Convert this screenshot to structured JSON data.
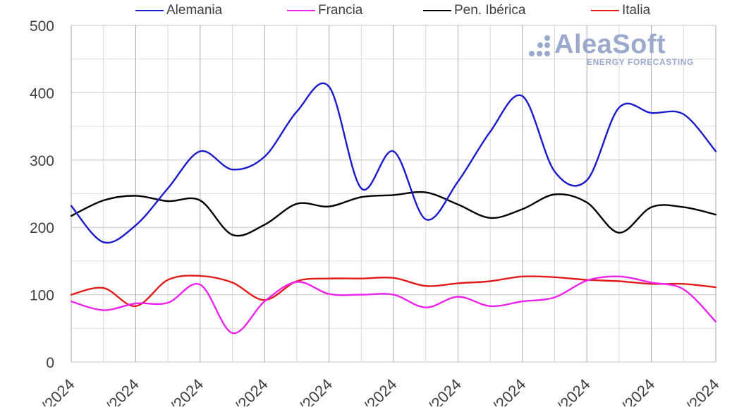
{
  "chart_data": {
    "type": "line",
    "title": "",
    "xlabel": "",
    "ylabel": "",
    "ylim": [
      0,
      500
    ],
    "yticks": [
      0,
      100,
      200,
      300,
      400,
      500
    ],
    "grid": true,
    "legend_position": "top",
    "x_tick_labels": [
      "/2024",
      "/2024",
      "/2024",
      "/2024",
      "/2024",
      "/2024",
      "/2024",
      "/2024",
      "/2024",
      "/2024",
      "/2024"
    ],
    "series": [
      {
        "name": "Alemania",
        "color": "#1a1acc",
        "values": [
          232,
          178,
          203,
          258,
          313,
          286,
          305,
          372,
          409,
          258,
          313,
          212,
          268,
          342,
          395,
          283,
          270,
          378,
          370,
          368,
          313
        ]
      },
      {
        "name": "Francia",
        "color": "#ee22ee",
        "values": [
          90,
          77,
          87,
          88,
          115,
          43,
          90,
          119,
          101,
          100,
          100,
          81,
          97,
          83,
          90,
          96,
          121,
          127,
          118,
          108,
          60
        ]
      },
      {
        "name": "Pen. Ibérica",
        "color": "#000000",
        "values": [
          217,
          240,
          247,
          239,
          240,
          189,
          204,
          235,
          231,
          245,
          248,
          252,
          234,
          214,
          227,
          249,
          237,
          192,
          230,
          230,
          219
        ]
      },
      {
        "name": "Italia",
        "color": "#e31a1a",
        "values": [
          100,
          110,
          83,
          122,
          128,
          118,
          92,
          120,
          124,
          124,
          125,
          113,
          117,
          120,
          127,
          126,
          122,
          120,
          116,
          116,
          111
        ]
      }
    ]
  },
  "watermark": {
    "brand": "AleaSoft",
    "tagline": "ENERGY FORECASTING"
  }
}
